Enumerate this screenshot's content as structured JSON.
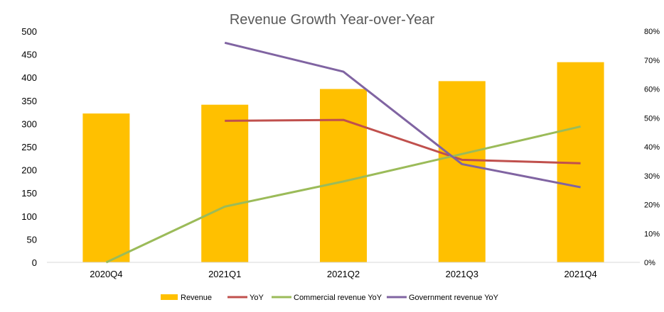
{
  "chart_data": {
    "type": "bar",
    "title": "Revenue Growth Year-over-Year",
    "categories": [
      "2020Q4",
      "2021Q1",
      "2021Q2",
      "2021Q3",
      "2021Q4"
    ],
    "y_left": {
      "ticks": [
        "0",
        "50",
        "100",
        "150",
        "200",
        "250",
        "300",
        "350",
        "400",
        "450",
        "500"
      ],
      "ylim": [
        0,
        500
      ]
    },
    "y_right": {
      "ticks": [
        "0%",
        "10%",
        "20%",
        "30%",
        "40%",
        "50%",
        "60%",
        "70%",
        "80%"
      ],
      "ylim": [
        0,
        80
      ]
    },
    "grid": false,
    "legend_position": "bottom",
    "series": [
      {
        "name": "Revenue",
        "kind": "bar",
        "axis": "left",
        "color": "#FFC000",
        "values": [
          322,
          341,
          375,
          392,
          433
        ]
      },
      {
        "name": "YoY",
        "kind": "line",
        "axis": "right",
        "color": "#C0504D",
        "values": [
          null,
          49,
          49.3,
          35.5,
          34.3
        ]
      },
      {
        "name": "Commercial revenue YoY",
        "kind": "line",
        "axis": "right",
        "color": "#9BBB59",
        "values": [
          0,
          19.3,
          28,
          37.5,
          47
        ]
      },
      {
        "name": "Government revenue YoY",
        "kind": "line",
        "axis": "right",
        "color": "#8064A2",
        "values": [
          null,
          76,
          66,
          34,
          26
        ]
      }
    ]
  }
}
